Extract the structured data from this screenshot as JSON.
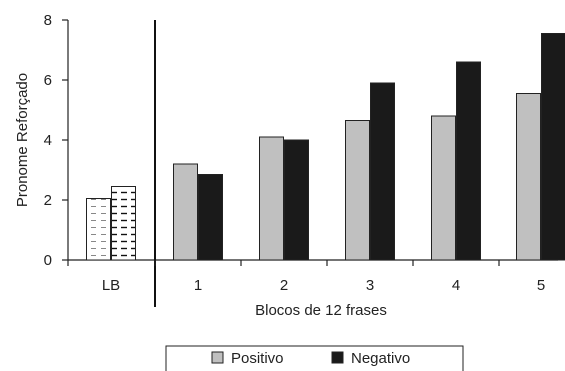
{
  "chart_data": {
    "type": "bar",
    "title": "",
    "xlabel": "Blocos de 12 frases",
    "ylabel": "Pronome Reforçado",
    "ylim": [
      0,
      8
    ],
    "yticks": [
      0,
      2,
      4,
      6,
      8
    ],
    "categories": [
      "LB",
      "1",
      "2",
      "3",
      "4",
      "5"
    ],
    "series": [
      {
        "name": "Positivo",
        "values": [
          2.05,
          3.2,
          4.1,
          4.65,
          4.8,
          5.55
        ],
        "color": "#c0c0c0",
        "baseline_pattern": "dashed-light"
      },
      {
        "name": "Negativo",
        "values": [
          2.45,
          2.85,
          4.0,
          5.9,
          6.6,
          7.55
        ],
        "color": "#1a1a1a",
        "baseline_pattern": "dashed-dark"
      }
    ],
    "grid": false,
    "legend_position": "bottom"
  }
}
